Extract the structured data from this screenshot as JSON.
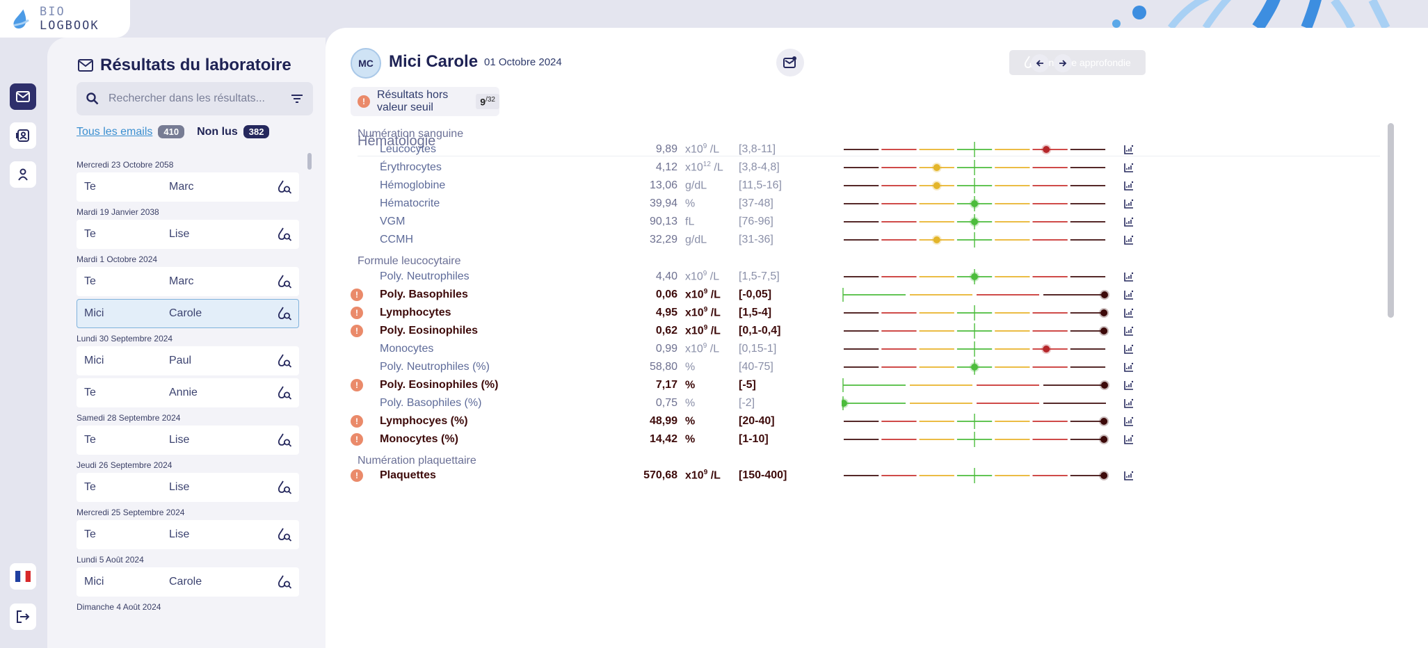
{
  "app": {
    "logo_prefix": "BIO",
    "logo_suffix": "LOGBOOK"
  },
  "list": {
    "title": "Résultats du laboratoire",
    "search_placeholder": "Rechercher dans les résultats...",
    "filter_all_label": "Tous les emails",
    "filter_all_count": "410",
    "filter_unread_label": "Non lus",
    "filter_unread_count": "382",
    "groups": [
      {
        "date": "Mercredi 23 Octobre 2058",
        "items": [
          {
            "first": "Te",
            "last": "Marc"
          }
        ]
      },
      {
        "date": "Mardi 19 Janvier 2038",
        "items": [
          {
            "first": "Te",
            "last": "Lise"
          }
        ]
      },
      {
        "date": "Mardi 1 Octobre 2024",
        "items": [
          {
            "first": "Te",
            "last": "Marc"
          },
          {
            "first": "Mici",
            "last": "Carole",
            "selected": true
          }
        ]
      },
      {
        "date": "Lundi 30 Septembre 2024",
        "items": [
          {
            "first": "Mici",
            "last": "Paul"
          },
          {
            "first": "Te",
            "last": "Annie"
          }
        ]
      },
      {
        "date": "Samedi 28 Septembre 2024",
        "items": [
          {
            "first": "Te",
            "last": "Lise"
          }
        ]
      },
      {
        "date": "Jeudi 26 Septembre 2024",
        "items": [
          {
            "first": "Te",
            "last": "Lise"
          }
        ]
      },
      {
        "date": "Mercredi 25 Septembre 2024",
        "items": [
          {
            "first": "Te",
            "last": "Lise"
          }
        ]
      },
      {
        "date": "Lundi 5 Août 2024",
        "items": [
          {
            "first": "Mici",
            "last": "Carole"
          }
        ]
      },
      {
        "date": "Dimanche 4 Août 2024",
        "items": []
      }
    ]
  },
  "patient": {
    "initials": "MC",
    "name": "Mici Carole",
    "date": "01 Octobre 2024",
    "deep_analysis_label": "Analyse approfondie",
    "out_of_range_label": "Résultats hors valeur seuil",
    "out_of_range_count": "9",
    "out_of_range_total": "32"
  },
  "results": {
    "section": "Hématologie",
    "subsections": [
      {
        "title": "Numération sanguine",
        "rows": [
          {
            "name": "Leucocytes",
            "value": "9,89",
            "unit_base": "x10",
            "unit_exp": "9",
            "unit_rest": " /L",
            "range": "[3,8-11]",
            "abnormal": false,
            "scale": "zones",
            "marker": 5.4,
            "marker_color": "#b5262a"
          },
          {
            "name": "Érythrocytes",
            "value": "4,12",
            "unit_base": "x10",
            "unit_exp": "12",
            "unit_rest": " /L",
            "range": "[3,8-4,8]",
            "abnormal": false,
            "scale": "zones",
            "marker": 2.5,
            "marker_color": "#e3b52a"
          },
          {
            "name": "Hémoglobine",
            "value": "13,06",
            "unit_base": "g/dL",
            "unit_exp": "",
            "unit_rest": "",
            "range": "[11,5-16]",
            "abnormal": false,
            "scale": "zones",
            "marker": 2.5,
            "marker_color": "#e3b52a"
          },
          {
            "name": "Hématocrite",
            "value": "39,94",
            "unit_base": "%",
            "unit_exp": "",
            "unit_rest": "",
            "range": "[37-48]",
            "abnormal": false,
            "scale": "zones",
            "marker": 3.5,
            "marker_color": "#4cbc3c"
          },
          {
            "name": "VGM",
            "value": "90,13",
            "unit_base": "fL",
            "unit_exp": "",
            "unit_rest": "",
            "range": "[76-96]",
            "abnormal": false,
            "scale": "zones",
            "marker": 3.5,
            "marker_color": "#4cbc3c"
          },
          {
            "name": "CCMH",
            "value": "32,29",
            "unit_base": "g/dL",
            "unit_exp": "",
            "unit_rest": "",
            "range": "[31-36]",
            "abnormal": false,
            "scale": "zones",
            "marker": 2.5,
            "marker_color": "#e3b52a"
          }
        ]
      },
      {
        "title": "Formule leucocytaire",
        "rows": [
          {
            "name": "Poly. Neutrophiles",
            "value": "4,40",
            "unit_base": "x10",
            "unit_exp": "9",
            "unit_rest": " /L",
            "range": "[1,5-7,5]",
            "abnormal": false,
            "scale": "zones",
            "marker": 3.5,
            "marker_color": "#4cbc3c"
          },
          {
            "name": "Poly. Basophiles",
            "value": "0,06",
            "unit_base": "x10",
            "unit_exp": "9",
            "unit_rest": " /L",
            "range": "[-0,05]",
            "abnormal": true,
            "scale": "upper",
            "marker": 4,
            "marker_color": "#3d0a0a"
          },
          {
            "name": "Lymphocytes",
            "value": "4,95",
            "unit_base": "x10",
            "unit_exp": "9",
            "unit_rest": " /L",
            "range": "[1,5-4]",
            "abnormal": true,
            "scale": "zones",
            "marker": 7,
            "marker_color": "#3d0a0a"
          },
          {
            "name": "Poly. Eosinophiles",
            "value": "0,62",
            "unit_base": "x10",
            "unit_exp": "9",
            "unit_rest": " /L",
            "range": "[0,1-0,4]",
            "abnormal": true,
            "scale": "zones",
            "marker": 7,
            "marker_color": "#3d0a0a"
          },
          {
            "name": "Monocytes",
            "value": "0,99",
            "unit_base": "x10",
            "unit_exp": "9",
            "unit_rest": " /L",
            "range": "[0,15-1]",
            "abnormal": false,
            "scale": "zones",
            "marker": 5.4,
            "marker_color": "#b5262a"
          },
          {
            "name": "Poly. Neutrophiles (%)",
            "value": "58,80",
            "unit_base": "%",
            "unit_exp": "",
            "unit_rest": "",
            "range": "[40-75]",
            "abnormal": false,
            "scale": "zones",
            "marker": 3.5,
            "marker_color": "#4cbc3c"
          },
          {
            "name": "Poly. Eosinophiles (%)",
            "value": "7,17",
            "unit_base": "%",
            "unit_exp": "",
            "unit_rest": "",
            "range": "[-5]",
            "abnormal": true,
            "scale": "upper",
            "marker": 4,
            "marker_color": "#3d0a0a"
          },
          {
            "name": "Poly. Basophiles (%)",
            "value": "0,75",
            "unit_base": "%",
            "unit_exp": "",
            "unit_rest": "",
            "range": "[-2]",
            "abnormal": false,
            "scale": "upper",
            "marker": 0,
            "marker_color": "#4cbc3c"
          },
          {
            "name": "Lymphocyes (%)",
            "value": "48,99",
            "unit_base": "%",
            "unit_exp": "",
            "unit_rest": "",
            "range": "[20-40]",
            "abnormal": true,
            "scale": "zones",
            "marker": 7,
            "marker_color": "#3d0a0a"
          },
          {
            "name": "Monocytes (%)",
            "value": "14,42",
            "unit_base": "%",
            "unit_exp": "",
            "unit_rest": "",
            "range": "[1-10]",
            "abnormal": true,
            "scale": "zones",
            "marker": 7,
            "marker_color": "#3d0a0a"
          }
        ]
      },
      {
        "title": "Numération plaquettaire",
        "rows": [
          {
            "name": "Plaquettes",
            "value": "570,68",
            "unit_base": "x10",
            "unit_exp": "9",
            "unit_rest": " /L",
            "range": "[150-400]",
            "abnormal": true,
            "scale": "zones",
            "marker": 7,
            "marker_color": "#3d0a0a"
          }
        ]
      }
    ]
  },
  "colors": {
    "zone_outer": "#3d0a0a",
    "zone_red": "#c8302e",
    "zone_yellow": "#e8b22a",
    "zone_green": "#4cbc3c",
    "accent_navy": "#25285d",
    "warning": "#ea8a6a"
  }
}
